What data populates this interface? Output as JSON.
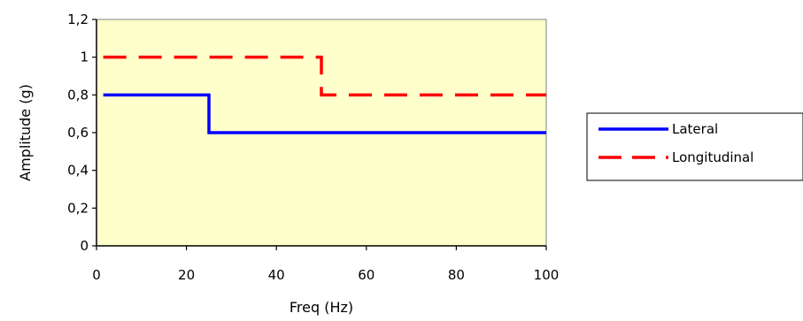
{
  "chart_data": {
    "type": "line",
    "title": "",
    "xlabel": "Freq (Hz)",
    "ylabel": "Amplitude (g)",
    "xlim": [
      0,
      100
    ],
    "ylim": [
      0,
      1.2
    ],
    "x_ticks": [
      "0",
      "20",
      "40",
      "60",
      "80",
      "100"
    ],
    "y_ticks": [
      "0",
      "0,2",
      "0,4",
      "0,6",
      "0,8",
      "1",
      "1,2"
    ],
    "grid": false,
    "plot_background": "#ffffcc",
    "legend_position": "right",
    "series": [
      {
        "name": "Lateral",
        "color": "#0000ff",
        "style": "solid",
        "step": true,
        "points": [
          [
            1.5,
            0.8
          ],
          [
            25,
            0.8
          ],
          [
            25,
            0.6
          ],
          [
            100,
            0.6
          ]
        ]
      },
      {
        "name": "Longitudinal",
        "color": "#ff0000",
        "style": "dashed",
        "step": true,
        "points": [
          [
            1.5,
            1.0
          ],
          [
            50,
            1.0
          ],
          [
            50,
            0.8
          ],
          [
            100,
            0.8
          ]
        ]
      }
    ]
  }
}
